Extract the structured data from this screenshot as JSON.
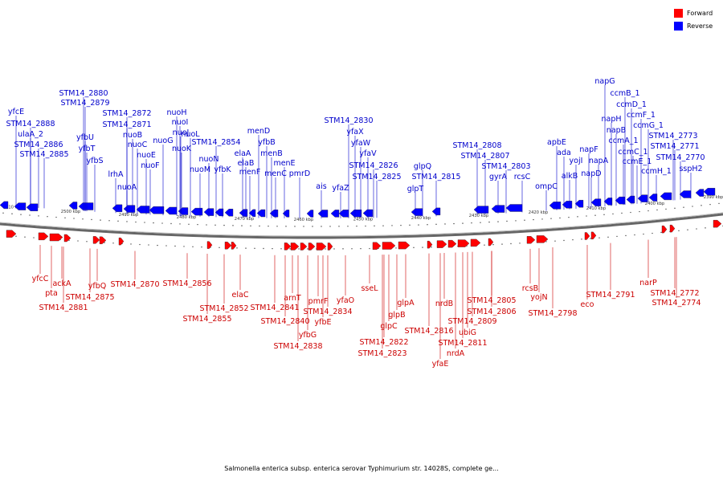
{
  "colors": {
    "forward": "#ff0000",
    "reverse": "#0000ff",
    "forward_label": "#cc0000",
    "reverse_label": "#0000cc",
    "axis": "#666666"
  },
  "legend": [
    {
      "label": "Forward",
      "color": "#ff0000"
    },
    {
      "label": "Reverse",
      "color": "#0000ff"
    }
  ],
  "caption": "Salmonella enterica subsp. enterica serovar Typhimurium str. 14028S, complete ge...",
  "axis_ticks": [
    "2510 kbp",
    "2500 kbp",
    "2490 kbp",
    "2480 kbp",
    "2470 kbp",
    "2460 kbp",
    "2450 kbp",
    "2440 kbp",
    "2430 kbp",
    "2420 kbp",
    "2410 kbp",
    "2400 kbp",
    "2390 kbp"
  ],
  "reverse_genes": [
    "STM14_2888",
    "ulaA_2",
    "STM14_2886",
    "STM14_2885",
    "yfcE",
    "STM14_2880",
    "STM14_2879",
    "yfbU",
    "yfbT",
    "yfbS",
    "lrhA",
    "nuoA",
    "nuoB",
    "nuoC",
    "nuoE",
    "nuoF",
    "STM14_2872",
    "STM14_2871",
    "nuoG",
    "nuoH",
    "nuoI",
    "nuoJ",
    "nuoK",
    "nuoL",
    "nuoM",
    "nuoN",
    "STM14_2854",
    "yfbK",
    "elaA",
    "elaB",
    "menF",
    "menD",
    "yfbB",
    "menB",
    "menC",
    "menE",
    "pmrD",
    "ais",
    "yfaZ",
    "yfaX",
    "yfaW",
    "yfaV",
    "STM14_2830",
    "STM14_2826",
    "STM14_2825",
    "glpT",
    "glpQ",
    "STM14_2815",
    "STM14_2808",
    "STM14_2807",
    "STM14_2803",
    "gyrA",
    "rcsC",
    "ompC",
    "apbE",
    "ada",
    "alkB",
    "yojI",
    "napF",
    "napD",
    "napA",
    "napH",
    "napB",
    "napG",
    "ccmB_1",
    "ccmD_1",
    "ccmA_1",
    "ccmF_1",
    "ccmC_1",
    "ccmE_1",
    "ccmG_1",
    "ccmH_1",
    "STM14_2773",
    "STM14_2771",
    "STM14_2770",
    "sspH2"
  ],
  "forward_genes": [
    "yfcC",
    "pta",
    "ackA",
    "STM14_2881",
    "yfbQ",
    "STM14_2875",
    "STM14_2870",
    "STM14_2856",
    "STM14_2852",
    "STM14_2855",
    "elaC",
    "arnT",
    "STM14_2841",
    "STM14_2840",
    "STM14_2838",
    "yfbG",
    "pmrF",
    "STM14_2834",
    "yfbE",
    "yfaO",
    "sseL",
    "glpC",
    "STM14_2822",
    "STM14_2823",
    "glpB",
    "glpA",
    "STM14_2816",
    "nrdB",
    "nrdA",
    "yfaE",
    "STM14_2811",
    "ubiG",
    "STM14_2809",
    "STM14_2805",
    "STM14_2806",
    "rcsB",
    "yojN",
    "STM14_2798",
    "eco",
    "STM14_2791",
    "narP",
    "STM14_2772",
    "STM14_2774"
  ]
}
